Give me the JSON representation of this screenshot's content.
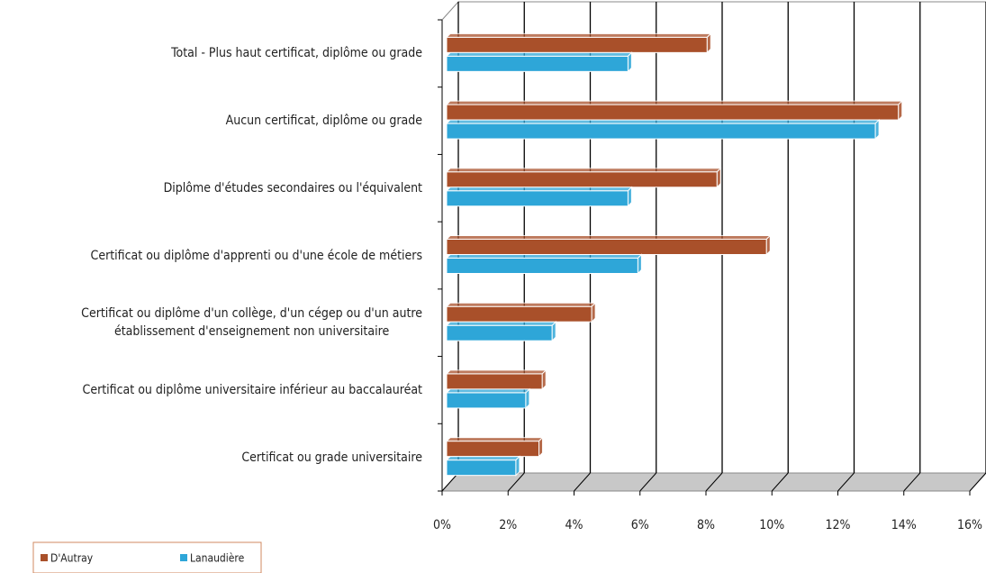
{
  "chart_data": {
    "type": "bar",
    "orientation": "horizontal",
    "categories": [
      "Total - Plus haut certificat, diplôme ou grade",
      "Aucun certificat, diplôme ou grade",
      "Diplôme d'études secondaires ou l'équivalent",
      "Certificat ou diplôme d'apprenti ou d'une école de métiers",
      "Certificat ou diplôme d'un collège, d'un cégep ou d'un autre\nétablissement d'enseignement non universitaire",
      "Certificat ou diplôme universitaire inférieur au baccalauréat",
      "Certificat ou grade universitaire"
    ],
    "series": [
      {
        "name": "D'Autray",
        "color": "#a9502a",
        "values": [
          7.9,
          13.7,
          8.2,
          9.7,
          4.4,
          2.9,
          2.8
        ]
      },
      {
        "name": "Lanaudière",
        "color": "#2ea6d8",
        "values": [
          5.5,
          13.0,
          5.5,
          5.8,
          3.2,
          2.4,
          2.1
        ]
      }
    ],
    "xlim": [
      0,
      16
    ],
    "xticks": [
      {
        "value": 0,
        "label": "0%"
      },
      {
        "value": 2,
        "label": "2%"
      },
      {
        "value": 4,
        "label": "4%"
      },
      {
        "value": 6,
        "label": "6%"
      },
      {
        "value": 8,
        "label": "8%"
      },
      {
        "value": 10,
        "label": "10%"
      },
      {
        "value": 12,
        "label": "12%"
      },
      {
        "value": 14,
        "label": "14%"
      },
      {
        "value": 16,
        "label": "16%"
      }
    ],
    "grid": true,
    "legend": "bottom-left"
  }
}
